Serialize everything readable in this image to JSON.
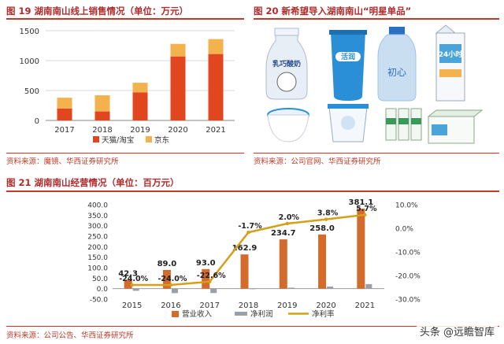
{
  "panel19": {
    "title": "图 19 湖南南山线上销售情况（单位：万元）",
    "source": "资料来源：魔镜、华西证券研究所"
  },
  "panel20": {
    "title": "图 20 新希望导入湖南南山“明星单品”",
    "source": "资料来源：公司官网、华西证券研究所",
    "products": [
      {
        "name": "yogurt-bottle-cartoon",
        "text": "乳巧酸奶",
        "color": "#e8eef6"
      },
      {
        "name": "cup-huoxian-blue",
        "text": "活润",
        "color": "#2a8fd6"
      },
      {
        "name": "bottle-chuxin",
        "text": "初心",
        "color": "#c9dff1"
      },
      {
        "name": "carton-24h",
        "text": "24小时",
        "color": "#4aa3d9"
      },
      {
        "name": "bowl-yogurt",
        "text": "",
        "color": "#2a8fd6"
      },
      {
        "name": "cup-yogurt-blue",
        "text": "",
        "color": "#2a8fd6"
      },
      {
        "name": "box-packs",
        "text": "",
        "color": "#3a9a5a"
      }
    ]
  },
  "panel21": {
    "title": "图 21 湖南南山经营情况（单位：百万元）",
    "source": "资料来源：公司公告、华西证券研究所"
  },
  "watermark": "头条 @远瞻智库",
  "chart_data": [
    {
      "type": "bar",
      "stacked": true,
      "categories": [
        "2017",
        "2018",
        "2019",
        "2020",
        "2021"
      ],
      "series": [
        {
          "name": "天猫/淘宝",
          "color": "#e2461f",
          "values": [
            200,
            150,
            470,
            1070,
            1110
          ]
        },
        {
          "name": "京东",
          "color": "#f4b24e",
          "values": [
            180,
            270,
            160,
            210,
            250
          ]
        }
      ],
      "ylim": [
        0,
        1500
      ],
      "yticks": [
        "0",
        "500",
        "1000",
        "1500"
      ],
      "legend": "bottom"
    },
    {
      "type": "bar+line",
      "categories": [
        "2015",
        "2016",
        "2017",
        "2018",
        "2019",
        "2020",
        "2021"
      ],
      "series": [
        {
          "name": "营业收入",
          "color": "#d46a2c",
          "axis": "left",
          "values": [
            42.3,
            89.0,
            93.0,
            162.9,
            234.7,
            258.0,
            381.1
          ]
        },
        {
          "name": "净利润",
          "color": "#9aa0a8",
          "axis": "left",
          "values": [
            -10.2,
            -21.4,
            -21.0,
            -2.8,
            4.7,
            9.8,
            21.7
          ]
        },
        {
          "name": "净利率",
          "color": "#d4a017",
          "axis": "right",
          "values": [
            -24.0,
            -24.0,
            -22.6,
            -1.7,
            2.0,
            3.8,
            5.7
          ]
        }
      ],
      "bar_labels": [
        "42.3",
        "89.0",
        "93.0",
        "162.9",
        "234.7",
        "258.0",
        "381.1"
      ],
      "line_labels": [
        "-24.0%",
        "-24.0%",
        "-22.6%",
        "-1.7%",
        "2.0%",
        "3.8%",
        "5.7%"
      ],
      "ylim_left": [
        -50,
        400
      ],
      "yticks_left": [
        "-50.0",
        "0.0",
        "50.0",
        "100.0",
        "150.0",
        "200.0",
        "250.0",
        "300.0",
        "350.0",
        "400.0"
      ],
      "ylim_right": [
        -30,
        10
      ],
      "yticks_right": [
        "-30.0%",
        "-20.0%",
        "-10.0%",
        "0.0%",
        "10.0%"
      ],
      "legend": "bottom"
    }
  ]
}
